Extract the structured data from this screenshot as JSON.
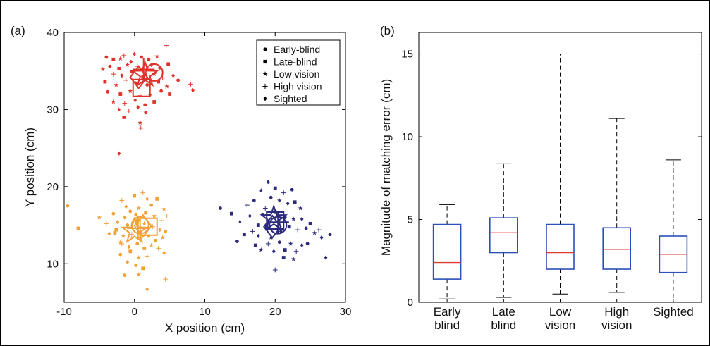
{
  "chart_data": [
    {
      "type": "scatter",
      "panel_label": "(a)",
      "xlabel": "X position (cm)",
      "ylabel": "Y position (cm)",
      "xlim": [
        -10,
        30
      ],
      "ylim": [
        5,
        40
      ],
      "xticks": [
        -10,
        0,
        10,
        20,
        30
      ],
      "yticks": [
        10,
        20,
        30,
        40
      ],
      "xtick_labels": [
        "-10",
        "0",
        "10",
        "20",
        "30"
      ],
      "ytick_labels": [
        "10",
        "20",
        "30",
        "40"
      ],
      "legend": [
        "Early-blind",
        "Late-blind",
        "Low vision",
        "High vision",
        "Sighted"
      ],
      "legend_position": "top-right",
      "legend_markers": [
        "dot",
        "square",
        "star",
        "plus",
        "diamond"
      ],
      "clusters": [
        {
          "color": "#e0312b",
          "center": [
            1,
            34
          ],
          "means": [
            [
              2.8,
              34.8
            ],
            [
              1.0,
              32.8
            ],
            [
              1.5,
              34.5
            ],
            [
              1.3,
              35.2
            ],
            [
              0.6,
              34.2
            ]
          ],
          "points": [
            [
              -4,
              36.8
            ],
            [
              -3,
              36.5
            ],
            [
              -2,
              36.6
            ],
            [
              -1.5,
              37
            ],
            [
              0,
              37.2
            ],
            [
              1,
              36.8
            ],
            [
              2,
              36.5
            ],
            [
              3.2,
              36.9
            ],
            [
              4.5,
              38.3
            ],
            [
              -0.5,
              36.2
            ],
            [
              -3.5,
              35.6
            ],
            [
              -2.2,
              35.3
            ],
            [
              -1,
              35.8
            ],
            [
              0.4,
              35.6
            ],
            [
              2.4,
              35.8
            ],
            [
              3.6,
              35.4
            ],
            [
              4.8,
              35.9
            ],
            [
              -4.5,
              35.2
            ],
            [
              -3,
              34.6
            ],
            [
              -1.8,
              34.4
            ],
            [
              -0.4,
              34.9
            ],
            [
              1.2,
              34.2
            ],
            [
              2.8,
              34.6
            ],
            [
              4.0,
              34.1
            ],
            [
              5.5,
              34.4
            ],
            [
              6.2,
              33.8
            ],
            [
              -4.2,
              33.6
            ],
            [
              -2.6,
              33.2
            ],
            [
              -1.2,
              33.8
            ],
            [
              0.2,
              33.4
            ],
            [
              1.8,
              33.2
            ],
            [
              3.4,
              33.6
            ],
            [
              4.6,
              33.0
            ],
            [
              8.0,
              33.3
            ],
            [
              8.3,
              32.5
            ],
            [
              -3.8,
              32.3
            ],
            [
              -2.0,
              32.0
            ],
            [
              -0.6,
              32.4
            ],
            [
              0.8,
              31.8
            ],
            [
              2.2,
              31.9
            ],
            [
              3.8,
              32.4
            ],
            [
              5.0,
              32.0
            ],
            [
              -3.0,
              31.0
            ],
            [
              -1.4,
              30.8
            ],
            [
              0.1,
              31.2
            ],
            [
              1.5,
              30.6
            ],
            [
              2.8,
              31.0
            ],
            [
              -2.2,
              30.0
            ],
            [
              -0.8,
              29.8
            ],
            [
              0.5,
              30.3
            ],
            [
              1.6,
              29.6
            ],
            [
              -1.5,
              29.0
            ],
            [
              0.8,
              28.3
            ],
            [
              0.9,
              27.6
            ],
            [
              -2.2,
              24.3
            ]
          ]
        },
        {
          "color": "#f2a037",
          "center": [
            1,
            14.5
          ],
          "means": [
            [
              0.8,
              15.0
            ],
            [
              2.0,
              14.8
            ],
            [
              0.0,
              14.2
            ],
            [
              0.5,
              14.6
            ],
            [
              1.2,
              14.9
            ]
          ],
          "points": [
            [
              -9.5,
              17.5
            ],
            [
              -8,
              14.6
            ],
            [
              -5,
              16.0
            ],
            [
              -4,
              15.2
            ],
            [
              -3.6,
              13.9
            ],
            [
              -3.0,
              16.5
            ],
            [
              -2.6,
              14.4
            ],
            [
              -2.0,
              12.8
            ],
            [
              -1.8,
              18.2
            ],
            [
              -1.2,
              17.4
            ],
            [
              -0.6,
              16.8
            ],
            [
              0.0,
              18.8
            ],
            [
              0.6,
              17.2
            ],
            [
              1.2,
              19.2
            ],
            [
              1.8,
              18.4
            ],
            [
              2.4,
              17.6
            ],
            [
              3.2,
              18.4
            ],
            [
              4.2,
              17.1
            ],
            [
              4.6,
              16.2
            ],
            [
              -1.4,
              16.0
            ],
            [
              0.2,
              16.4
            ],
            [
              1.6,
              16.6
            ],
            [
              2.8,
              16.2
            ],
            [
              3.8,
              15.6
            ],
            [
              -2.4,
              15.4
            ],
            [
              -1.0,
              15.0
            ],
            [
              0.4,
              15.6
            ],
            [
              1.4,
              15.2
            ],
            [
              2.6,
              14.8
            ],
            [
              3.6,
              14.4
            ],
            [
              4.4,
              14.2
            ],
            [
              -2.8,
              14.0
            ],
            [
              -1.6,
              13.6
            ],
            [
              -0.4,
              13.8
            ],
            [
              0.8,
              13.4
            ],
            [
              2.0,
              13.6
            ],
            [
              3.0,
              13.0
            ],
            [
              4.0,
              13.4
            ],
            [
              -1.8,
              12.6
            ],
            [
              -0.8,
              12.2
            ],
            [
              0.4,
              12.6
            ],
            [
              1.4,
              12.0
            ],
            [
              2.4,
              12.4
            ],
            [
              3.4,
              12.0
            ],
            [
              4.2,
              11.4
            ],
            [
              -2.0,
              11.2
            ],
            [
              -0.6,
              11.6
            ],
            [
              0.6,
              10.8
            ],
            [
              1.8,
              11.0
            ],
            [
              -1.0,
              10.2
            ],
            [
              0.2,
              9.8
            ],
            [
              1.2,
              9.4
            ],
            [
              0.6,
              8.6
            ],
            [
              4.4,
              8.0
            ],
            [
              1.8,
              6.7
            ],
            [
              -1.4,
              8.5
            ]
          ]
        },
        {
          "color": "#2b2a7c",
          "center": [
            20,
            15.5
          ],
          "means": [
            [
              20.4,
              15.0
            ],
            [
              20.0,
              15.6
            ],
            [
              19.8,
              15.8
            ],
            [
              20.4,
              15.4
            ],
            [
              19.6,
              14.8
            ]
          ],
          "points": [
            [
              12.2,
              17.2
            ],
            [
              13.8,
              16.5
            ],
            [
              15.0,
              15.5
            ],
            [
              16.0,
              17.6
            ],
            [
              16.4,
              16.2
            ],
            [
              17.0,
              18.2
            ],
            [
              17.6,
              15.0
            ],
            [
              18.0,
              19.5
            ],
            [
              18.6,
              17.2
            ],
            [
              19.0,
              20.6
            ],
            [
              19.4,
              18.6
            ],
            [
              20.0,
              19.8
            ],
            [
              20.6,
              18.2
            ],
            [
              21.2,
              19.2
            ],
            [
              21.8,
              17.8
            ],
            [
              22.4,
              19.6
            ],
            [
              22.8,
              18.0
            ],
            [
              23.6,
              17.2
            ],
            [
              16.8,
              14.2
            ],
            [
              17.6,
              13.6
            ],
            [
              18.2,
              16.4
            ],
            [
              18.8,
              14.8
            ],
            [
              19.4,
              13.4
            ],
            [
              20.2,
              16.6
            ],
            [
              20.8,
              14.2
            ],
            [
              21.4,
              16.0
            ],
            [
              22.0,
              14.8
            ],
            [
              22.6,
              15.8
            ],
            [
              23.2,
              14.4
            ],
            [
              23.8,
              15.8
            ],
            [
              24.4,
              14.6
            ],
            [
              25.0,
              15.2
            ],
            [
              25.6,
              14.0
            ],
            [
              26.2,
              14.4
            ],
            [
              26.6,
              13.4
            ],
            [
              27.8,
              13.8
            ],
            [
              17.2,
              12.4
            ],
            [
              18.0,
              11.8
            ],
            [
              19.0,
              12.6
            ],
            [
              19.8,
              11.6
            ],
            [
              20.6,
              12.8
            ],
            [
              21.4,
              11.8
            ],
            [
              22.2,
              12.6
            ],
            [
              23.0,
              11.6
            ],
            [
              23.8,
              12.4
            ],
            [
              24.6,
              12.6
            ],
            [
              21.2,
              10.8
            ],
            [
              22.6,
              10.6
            ],
            [
              20.0,
              9.2
            ],
            [
              27.2,
              10.8
            ],
            [
              14.6,
              12.9
            ],
            [
              15.6,
              13.8
            ]
          ]
        }
      ]
    },
    {
      "type": "box",
      "panel_label": "(b)",
      "ylabel": "Magnitude of matching error (cm)",
      "ylim": [
        0,
        16.3
      ],
      "yticks": [
        0,
        5,
        10,
        15
      ],
      "ytick_labels": [
        "0",
        "5",
        "10",
        "15"
      ],
      "categories": [
        [
          "Early",
          "blind"
        ],
        [
          "Late",
          "blind"
        ],
        [
          "Low",
          "vision"
        ],
        [
          "High",
          "vision"
        ],
        [
          "Sighted"
        ]
      ],
      "box_color": "#2b4fb8",
      "median_color": "#e03a2e",
      "boxes": [
        {
          "whisker_low": 0.2,
          "q1": 1.4,
          "median": 2.4,
          "q3": 4.7,
          "whisker_high": 5.9
        },
        {
          "whisker_low": 0.3,
          "q1": 3.0,
          "median": 4.2,
          "q3": 5.1,
          "whisker_high": 8.4
        },
        {
          "whisker_low": 0.5,
          "q1": 2.0,
          "median": 3.0,
          "q3": 4.7,
          "whisker_high": 15.0
        },
        {
          "whisker_low": 0.6,
          "q1": 2.0,
          "median": 3.2,
          "q3": 4.5,
          "whisker_high": 11.1
        },
        {
          "whisker_low": 0.0,
          "q1": 1.8,
          "median": 2.9,
          "q3": 4.0,
          "whisker_high": 8.6
        }
      ]
    }
  ]
}
